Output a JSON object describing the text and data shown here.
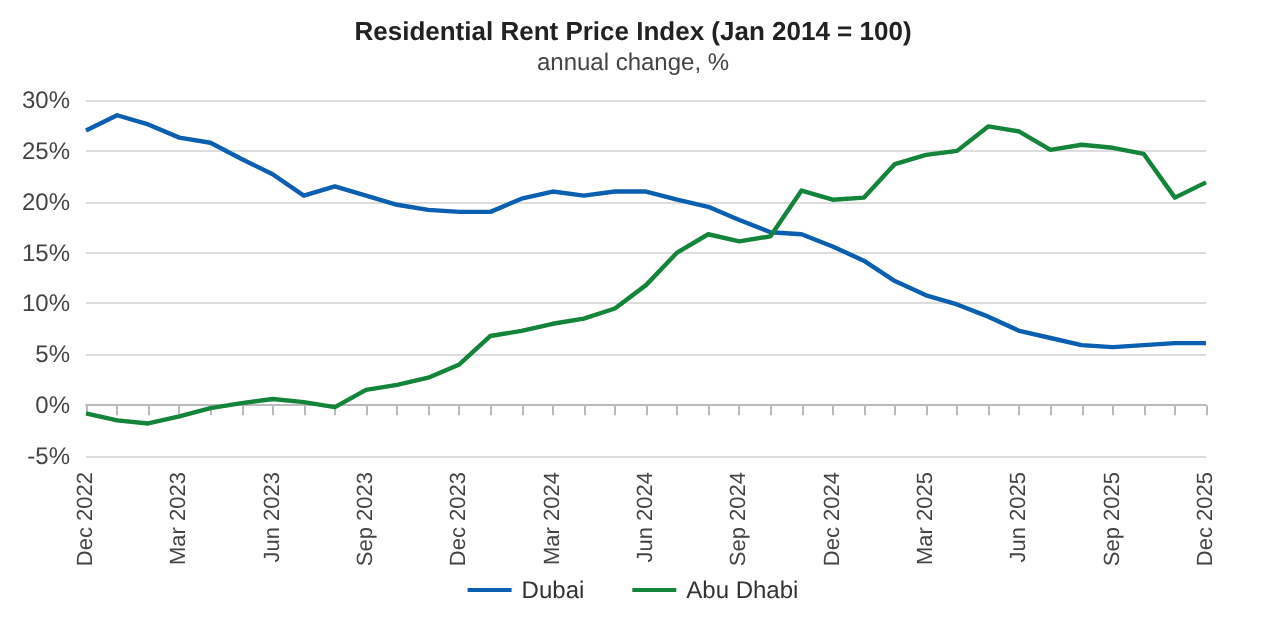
{
  "chart_data": {
    "type": "line",
    "title": "Residential Rent Price Index (Jan 2014 = 100)",
    "subtitle": "annual change, %",
    "categories": [
      "Dec 2022",
      null,
      null,
      "Mar 2023",
      null,
      null,
      "Jun 2023",
      null,
      null,
      "Sep 2023",
      null,
      null,
      "Dec 2023",
      null,
      null,
      "Mar 2024",
      null,
      null,
      "Jun 2024",
      null,
      null,
      "Sep 2024",
      null,
      null,
      "Dec 2024",
      null,
      null,
      "Mar 2025",
      null,
      null,
      "Jun 2025",
      null,
      null,
      "Sep 2025",
      null,
      null,
      "Dec 2025"
    ],
    "series": [
      {
        "name": "Dubai",
        "color": "#0b5fb0",
        "values": [
          27,
          28.5,
          27.6,
          26.3,
          25.8,
          24.2,
          22.7,
          20.6,
          21.5,
          20.6,
          19.7,
          19.2,
          19.0,
          19.0,
          20.3,
          21.0,
          20.6,
          21.0,
          21.0,
          20.2,
          19.5,
          18.2,
          17.0,
          16.8,
          15.6,
          14.2,
          12.2,
          10.8,
          9.9,
          8.7,
          7.3,
          6.6,
          5.9,
          5.7,
          5.9,
          6.1,
          6.1
        ]
      },
      {
        "name": "Abu Dhabi",
        "color": "#13843a",
        "values": [
          -0.8,
          -1.5,
          -1.8,
          -1.1,
          -0.3,
          0.2,
          0.6,
          0.3,
          -0.2,
          1.5,
          2.0,
          2.7,
          4.0,
          6.8,
          7.3,
          8.0,
          8.5,
          9.5,
          11.8,
          15.0,
          16.8,
          16.1,
          16.6,
          21.1,
          20.2,
          20.4,
          23.7,
          24.6,
          25.0,
          27.4,
          26.9,
          25.1,
          25.6,
          25.3,
          24.7,
          20.4,
          21.9
        ]
      }
    ],
    "ylim": [
      -5,
      30
    ],
    "yticks": [
      {
        "value": -5,
        "label": "-5%"
      },
      {
        "value": 0,
        "label": "0%"
      },
      {
        "value": 5,
        "label": "5%"
      },
      {
        "value": 10,
        "label": "10%"
      },
      {
        "value": 15,
        "label": "15%"
      },
      {
        "value": 20,
        "label": "20%"
      },
      {
        "value": 25,
        "label": "25%"
      },
      {
        "value": 30,
        "label": "30%"
      }
    ],
    "grid": "y",
    "legend": "bottom",
    "marker": "none",
    "line_style": "solid"
  }
}
